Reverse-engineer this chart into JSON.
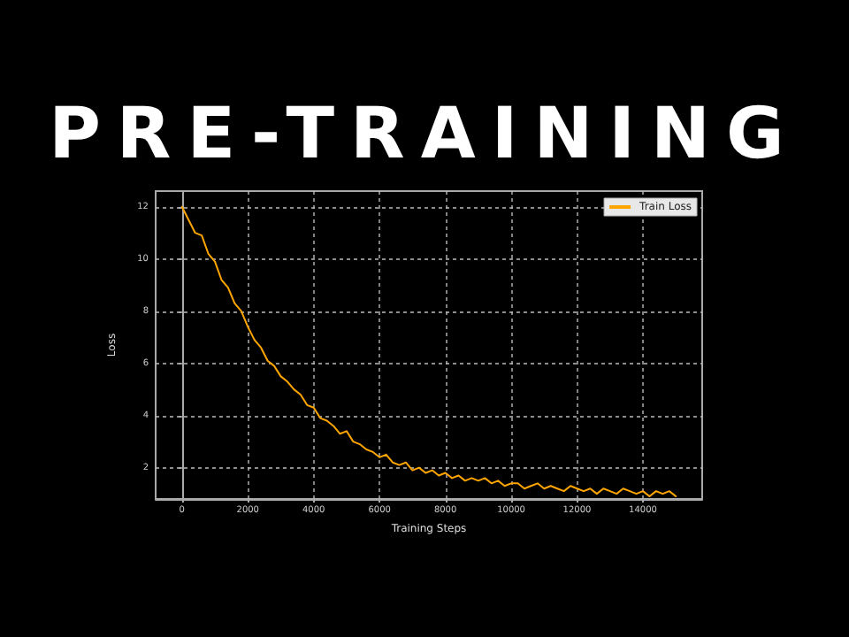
{
  "chart_data": {
    "type": "line",
    "title": "PRE-TRAINING",
    "xlabel": "Training Steps",
    "ylabel": "Loss",
    "x": [
      0,
      200,
      400,
      600,
      800,
      1000,
      1200,
      1400,
      1600,
      1800,
      2000,
      2200,
      2400,
      2600,
      2800,
      3000,
      3200,
      3400,
      3600,
      3800,
      4000,
      4200,
      4400,
      4600,
      4800,
      5000,
      5200,
      5400,
      5600,
      5800,
      6000,
      6200,
      6400,
      6600,
      6800,
      7000,
      7200,
      7400,
      7600,
      7800,
      8000,
      8200,
      8400,
      8600,
      8800,
      9000,
      9200,
      9400,
      9600,
      9800,
      10000,
      10200,
      10400,
      10600,
      10800,
      11000,
      11200,
      11400,
      11600,
      11800,
      12000,
      12200,
      12400,
      12600,
      12800,
      13000,
      13200,
      13400,
      13600,
      13800,
      14000,
      14200,
      14400,
      14600,
      14800,
      15000
    ],
    "series": [
      {
        "name": "Train Loss",
        "color": "#ffa500",
        "values": [
          12.0,
          11.5,
          11.0,
          10.9,
          10.2,
          9.9,
          9.2,
          8.9,
          8.3,
          8.0,
          7.4,
          6.9,
          6.6,
          6.1,
          5.9,
          5.5,
          5.3,
          5.0,
          4.8,
          4.4,
          4.3,
          3.9,
          3.8,
          3.6,
          3.3,
          3.4,
          3.0,
          2.9,
          2.7,
          2.6,
          2.4,
          2.5,
          2.2,
          2.1,
          2.2,
          1.9,
          2.0,
          1.8,
          1.9,
          1.7,
          1.8,
          1.6,
          1.7,
          1.5,
          1.6,
          1.5,
          1.6,
          1.4,
          1.5,
          1.3,
          1.4,
          1.4,
          1.2,
          1.3,
          1.4,
          1.2,
          1.3,
          1.2,
          1.1,
          1.3,
          1.2,
          1.1,
          1.2,
          1.0,
          1.2,
          1.1,
          1.0,
          1.2,
          1.1,
          1.0,
          1.1,
          0.9,
          1.1,
          1.0,
          1.1,
          0.9
        ]
      }
    ],
    "xlim": [
      -800,
      15800
    ],
    "xticks": [
      0,
      2000,
      4000,
      6000,
      8000,
      10000,
      12000,
      14000
    ],
    "ylim": [
      0.8,
      12.6
    ],
    "yticks": [
      2,
      4,
      6,
      8,
      10,
      12
    ],
    "grid": true,
    "legend": "top right",
    "marker": "none",
    "line_style": "solid"
  }
}
